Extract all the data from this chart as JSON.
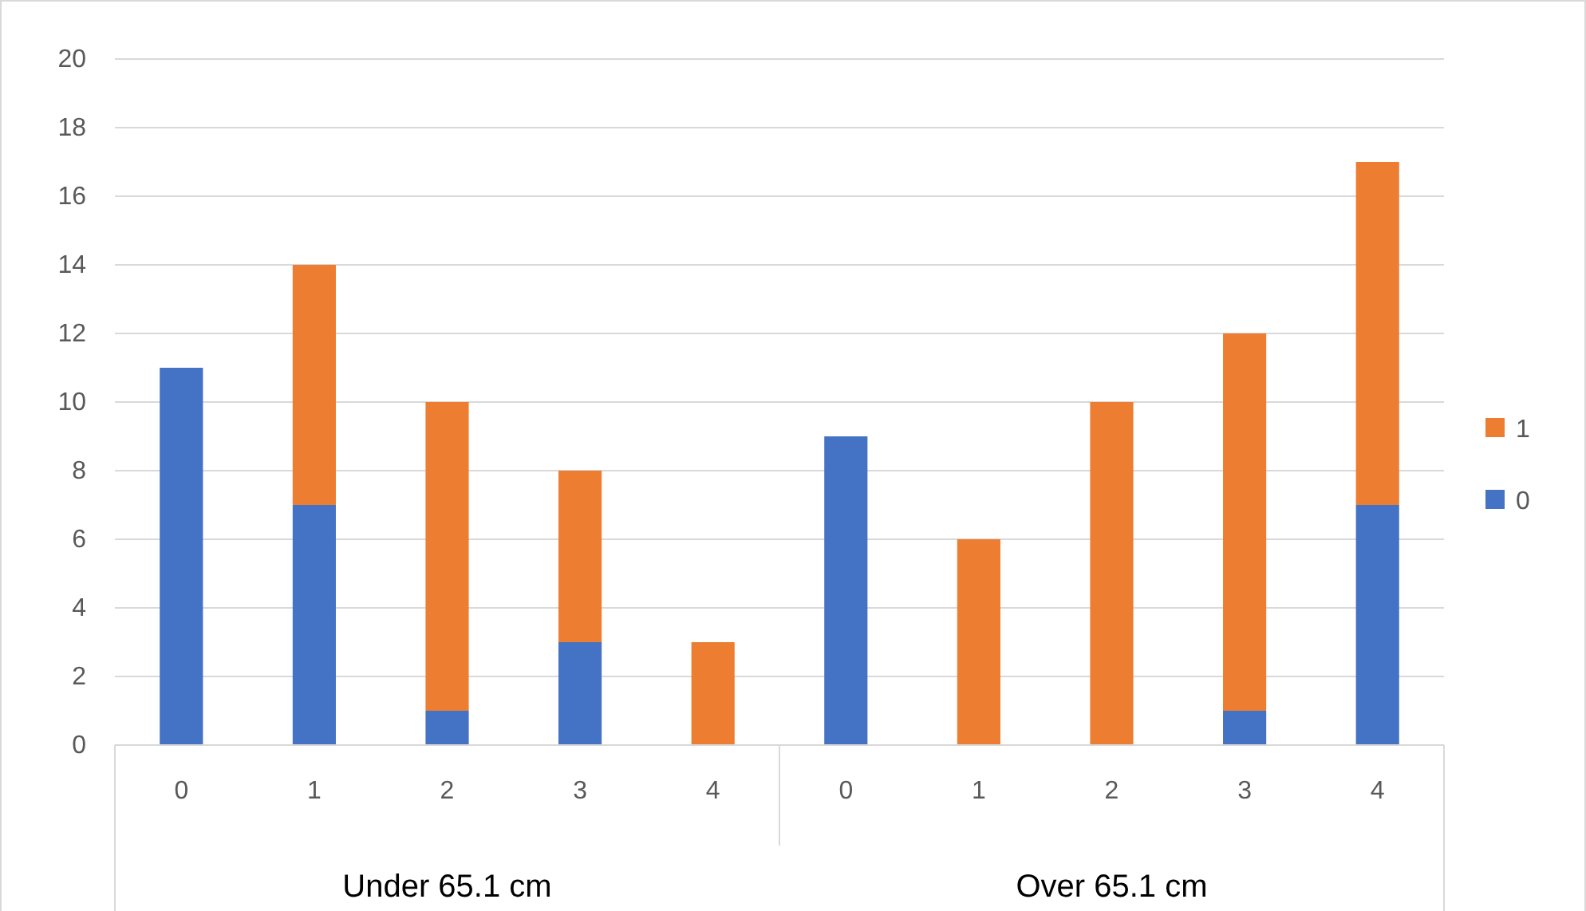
{
  "chart_data": {
    "type": "bar",
    "stacked": true,
    "categories": [
      "0",
      "1",
      "2",
      "3",
      "4",
      "0",
      "1",
      "2",
      "3",
      "4"
    ],
    "series": [
      {
        "name": "0",
        "color": "#4472c4",
        "values": [
          11,
          7,
          1,
          3,
          0,
          9,
          0,
          0,
          1,
          7
        ]
      },
      {
        "name": "1",
        "color": "#ed7d31",
        "values": [
          0,
          7,
          9,
          5,
          3,
          0,
          6,
          10,
          11,
          10
        ]
      }
    ],
    "ylim": [
      0,
      20
    ],
    "yticks": [
      0,
      2,
      4,
      6,
      8,
      10,
      12,
      14,
      16,
      18,
      20
    ],
    "grid": "y",
    "legend": "right",
    "annotations": [
      "Under 65.1 cm",
      "Over 65.1 cm"
    ]
  }
}
